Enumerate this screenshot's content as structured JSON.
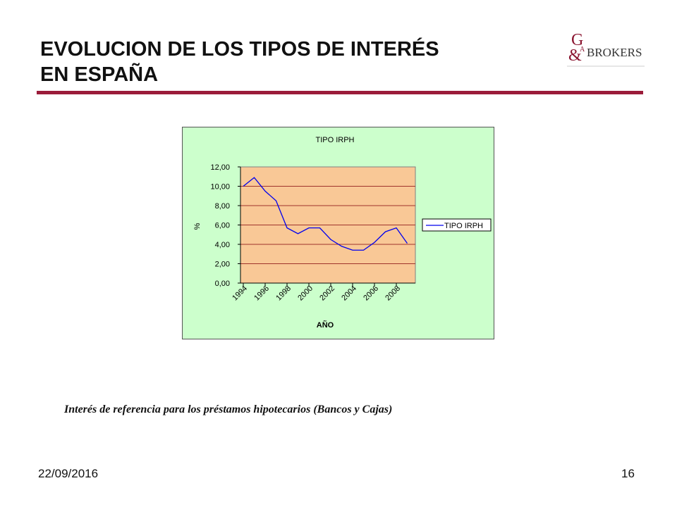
{
  "slide": {
    "title_line1": "EVOLUCION DE LOS TIPOS DE INTERÉS",
    "title_line2": "EN ESPAÑA",
    "caption": "Interés de referencia para los préstamos hipotecarios (Bancos y Cajas)",
    "date": "22/09/2016",
    "page_number": "16"
  },
  "logo": {
    "monogram_top": "G",
    "monogram_bottom": "&",
    "small_letter": "A",
    "wordmark": "BROKERS"
  },
  "colors": {
    "accent_rule": "#9b1c3a",
    "chart_background": "#ccffcc",
    "plot_background": "#f9c896",
    "gridline": "#a0342c",
    "series_line": "#0000ee"
  },
  "chart_data": {
    "type": "line",
    "title": "TIPO IRPH",
    "xlabel": "AÑO",
    "ylabel": "%",
    "x": [
      1994,
      1995,
      1996,
      1997,
      1998,
      1999,
      2000,
      2001,
      2002,
      2003,
      2004,
      2005,
      2006,
      2007,
      2008,
      2009
    ],
    "x_tick_labels": [
      "1994",
      "1996",
      "1998",
      "2000",
      "2002",
      "2004",
      "2006",
      "2008"
    ],
    "y_tick_labels": [
      "0,00",
      "2,00",
      "4,00",
      "6,00",
      "8,00",
      "10,00",
      "12,00"
    ],
    "series": [
      {
        "name": "TIPO IRPH",
        "values": [
          10.0,
          10.9,
          9.5,
          8.5,
          5.7,
          5.1,
          5.7,
          5.7,
          4.5,
          3.8,
          3.4,
          3.4,
          4.2,
          5.3,
          5.7,
          4.1
        ]
      }
    ],
    "ylim": [
      0,
      12
    ],
    "grid": true,
    "legend": "right"
  }
}
